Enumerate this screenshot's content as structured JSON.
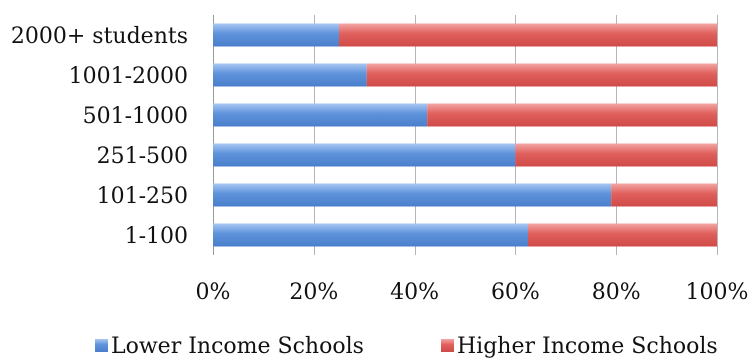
{
  "chart_data": {
    "type": "bar",
    "orientation": "horizontal",
    "stacked": "percent",
    "categories": [
      "2000+ students",
      "1001-2000",
      "501-1000",
      "251-500",
      "101-250",
      "1-100"
    ],
    "series": [
      {
        "name": "Lower Income Schools",
        "color": "#5b8fd9",
        "values": [
          25,
          30.5,
          42.5,
          60,
          79,
          62.5
        ]
      },
      {
        "name": "Higher Income Schools",
        "color": "#e0605e",
        "values": [
          75,
          69.5,
          57.5,
          40,
          21,
          37.5
        ]
      }
    ],
    "xlim": [
      0,
      100
    ],
    "xticks": [
      "0%",
      "20%",
      "40%",
      "60%",
      "80%",
      "100%"
    ],
    "grid": "vertical",
    "legend": "bottom"
  }
}
